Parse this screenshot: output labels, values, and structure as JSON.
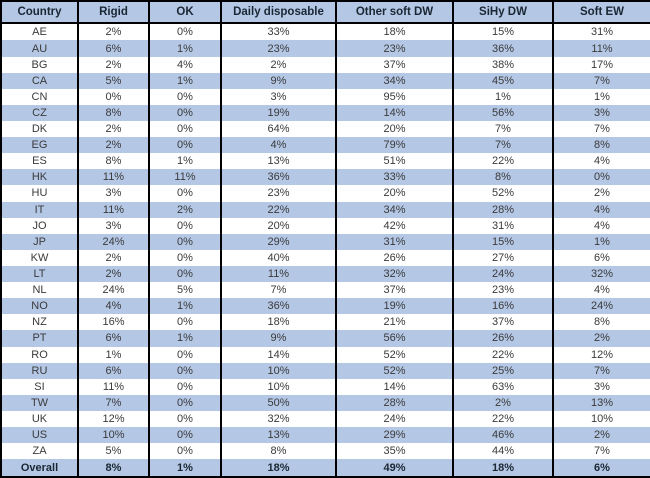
{
  "colors": {
    "stripe_blue": "#b4c7e5",
    "header_text": "#1a2733",
    "body_text": "#3a3a3a",
    "border": "#000000"
  },
  "chart_data": {
    "type": "table",
    "title": "",
    "columns": [
      "Country",
      "Rigid",
      "OK",
      "Daily disposable",
      "Other soft DW",
      "SiHy DW",
      "Soft EW"
    ],
    "rows": [
      [
        "AE",
        "2%",
        "0%",
        "33%",
        "18%",
        "15%",
        "31%"
      ],
      [
        "AU",
        "6%",
        "1%",
        "23%",
        "23%",
        "36%",
        "11%"
      ],
      [
        "BG",
        "2%",
        "4%",
        "2%",
        "37%",
        "38%",
        "17%"
      ],
      [
        "CA",
        "5%",
        "1%",
        "9%",
        "34%",
        "45%",
        "7%"
      ],
      [
        "CN",
        "0%",
        "0%",
        "3%",
        "95%",
        "1%",
        "1%"
      ],
      [
        "CZ",
        "8%",
        "0%",
        "19%",
        "14%",
        "56%",
        "3%"
      ],
      [
        "DK",
        "2%",
        "0%",
        "64%",
        "20%",
        "7%",
        "7%"
      ],
      [
        "EG",
        "2%",
        "0%",
        "4%",
        "79%",
        "7%",
        "8%"
      ],
      [
        "ES",
        "8%",
        "1%",
        "13%",
        "51%",
        "22%",
        "4%"
      ],
      [
        "HK",
        "11%",
        "11%",
        "36%",
        "33%",
        "8%",
        "0%"
      ],
      [
        "HU",
        "3%",
        "0%",
        "23%",
        "20%",
        "52%",
        "2%"
      ],
      [
        "IT",
        "11%",
        "2%",
        "22%",
        "34%",
        "28%",
        "4%"
      ],
      [
        "JO",
        "3%",
        "0%",
        "20%",
        "42%",
        "31%",
        "4%"
      ],
      [
        "JP",
        "24%",
        "0%",
        "29%",
        "31%",
        "15%",
        "1%"
      ],
      [
        "KW",
        "2%",
        "0%",
        "40%",
        "26%",
        "27%",
        "6%"
      ],
      [
        "LT",
        "2%",
        "0%",
        "11%",
        "32%",
        "24%",
        "32%"
      ],
      [
        "NL",
        "24%",
        "5%",
        "7%",
        "37%",
        "23%",
        "4%"
      ],
      [
        "NO",
        "4%",
        "1%",
        "36%",
        "19%",
        "16%",
        "24%"
      ],
      [
        "NZ",
        "16%",
        "0%",
        "18%",
        "21%",
        "37%",
        "8%"
      ],
      [
        "PT",
        "6%",
        "1%",
        "9%",
        "56%",
        "26%",
        "2%"
      ],
      [
        "RO",
        "1%",
        "0%",
        "14%",
        "52%",
        "22%",
        "12%"
      ],
      [
        "RU",
        "6%",
        "0%",
        "10%",
        "52%",
        "25%",
        "7%"
      ],
      [
        "SI",
        "11%",
        "0%",
        "10%",
        "14%",
        "63%",
        "3%"
      ],
      [
        "TW",
        "7%",
        "0%",
        "50%",
        "28%",
        "2%",
        "13%"
      ],
      [
        "UK",
        "12%",
        "0%",
        "32%",
        "24%",
        "22%",
        "10%"
      ],
      [
        "US",
        "10%",
        "0%",
        "13%",
        "29%",
        "46%",
        "2%"
      ],
      [
        "ZA",
        "5%",
        "0%",
        "8%",
        "35%",
        "44%",
        "7%"
      ]
    ],
    "overall_row": [
      "Overall",
      "8%",
      "1%",
      "18%",
      "49%",
      "18%",
      "6%"
    ]
  }
}
